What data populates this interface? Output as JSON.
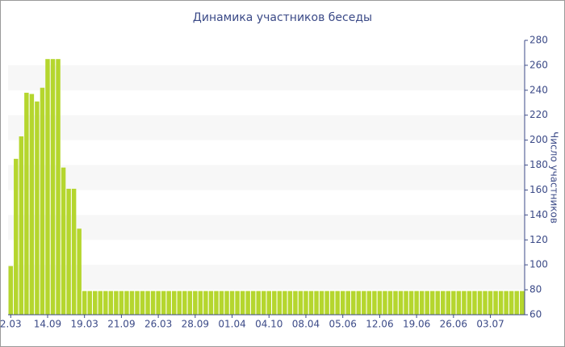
{
  "chart_data": {
    "type": "bar",
    "title": "Динамика участников беседы",
    "y_axis_label": "Число участников",
    "categories": [
      "2.03",
      null,
      null,
      null,
      null,
      null,
      null,
      "14.09",
      null,
      null,
      null,
      null,
      null,
      null,
      "19.03",
      null,
      null,
      null,
      null,
      null,
      null,
      "21.09",
      null,
      null,
      null,
      null,
      null,
      null,
      "26.03",
      null,
      null,
      null,
      null,
      null,
      null,
      "28.09",
      null,
      null,
      null,
      null,
      null,
      null,
      "01.04",
      null,
      null,
      null,
      null,
      null,
      null,
      "04.10",
      null,
      null,
      null,
      null,
      null,
      null,
      "08.04",
      null,
      null,
      null,
      null,
      null,
      null,
      "05.06",
      null,
      null,
      null,
      null,
      null,
      null,
      "12.06",
      null,
      null,
      null,
      null,
      null,
      null,
      "19.06",
      null,
      null,
      null,
      null,
      null,
      null,
      "26.06",
      null,
      null,
      null,
      null,
      null,
      null,
      "03.07",
      null,
      null,
      null,
      null,
      null,
      null
    ],
    "values": [
      99,
      185,
      203,
      238,
      237,
      231,
      242,
      265,
      265,
      265,
      178,
      161,
      161,
      129,
      79,
      79,
      79,
      79,
      79,
      79,
      79,
      79,
      79,
      79,
      79,
      79,
      79,
      79,
      79,
      79,
      79,
      79,
      79,
      79,
      79,
      79,
      79,
      79,
      79,
      79,
      79,
      79,
      79,
      79,
      79,
      79,
      79,
      79,
      79,
      79,
      79,
      79,
      79,
      79,
      79,
      79,
      79,
      79,
      79,
      79,
      79,
      79,
      79,
      79,
      79,
      79,
      79,
      79,
      79,
      79,
      79,
      79,
      79,
      79,
      79,
      79,
      79,
      79,
      79,
      79,
      79,
      79,
      79,
      79,
      79,
      79,
      79,
      79,
      79,
      79,
      79,
      79,
      79,
      79,
      79,
      79,
      79,
      79
    ],
    "color": "#b5d62e",
    "ylim": [
      60,
      280
    ],
    "yticks": [
      60,
      80,
      100,
      120,
      140,
      160,
      180,
      200,
      220,
      240,
      260,
      280
    ],
    "y_axis_side": "right",
    "grid": "bands"
  }
}
